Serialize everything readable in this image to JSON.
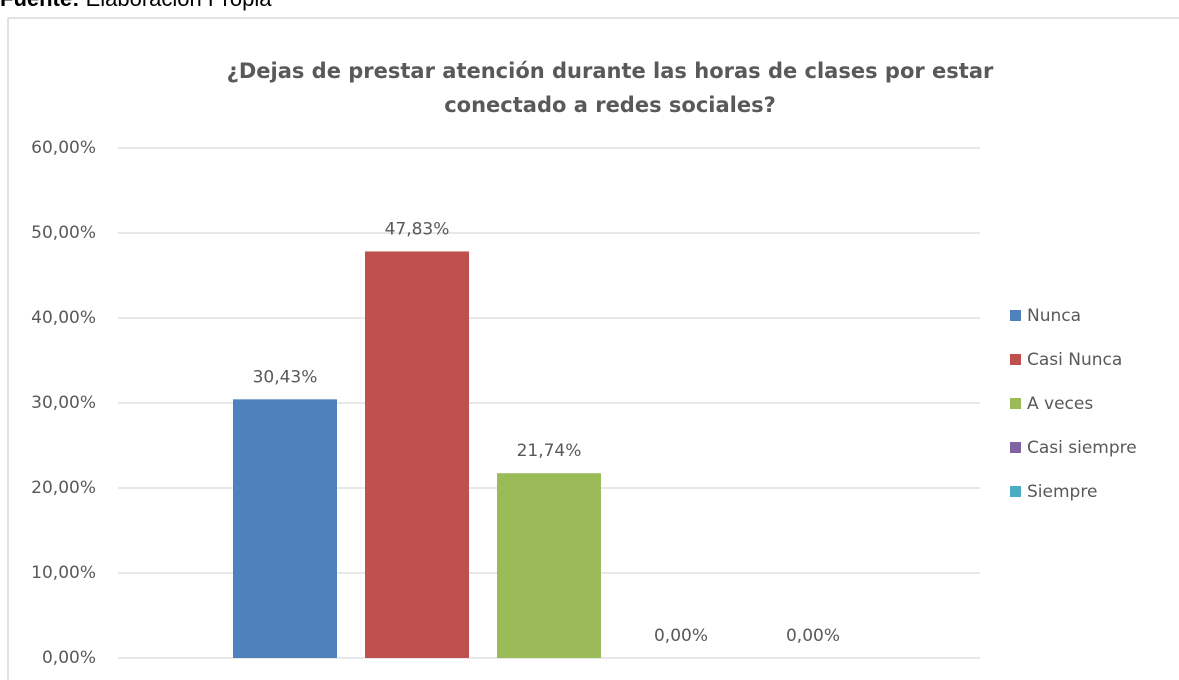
{
  "source_label": "Fuente:",
  "source": "Elaboración Propia",
  "chart_data": {
    "type": "bar",
    "title": "¿Dejas de prestar atención durante las horas de clases por estar conectado a redes sociales?",
    "categories": [
      null
    ],
    "series": [
      {
        "name": "Nunca",
        "color": "#4f81bd",
        "values": [
          30.43
        ],
        "value_labels": [
          "30,43%"
        ]
      },
      {
        "name": "Casi Nunca",
        "color": "#c0504d",
        "values": [
          47.83
        ],
        "value_labels": [
          "47,83%"
        ]
      },
      {
        "name": "A veces",
        "color": "#9bbb59",
        "values": [
          21.74
        ],
        "value_labels": [
          "21,74%"
        ]
      },
      {
        "name": "Casi siempre",
        "color": "#8064a2",
        "values": [
          0
        ],
        "value_labels": [
          "0,00%"
        ]
      },
      {
        "name": "Siempre",
        "color": "#4bacc6",
        "values": [
          0
        ],
        "value_labels": [
          "0,00%"
        ]
      }
    ],
    "ylim": [
      0,
      60
    ],
    "yticks": [
      {
        "value": 0,
        "label": "0,00%"
      },
      {
        "value": 10,
        "label": "10,00%"
      },
      {
        "value": 20,
        "label": "20,00%"
      },
      {
        "value": 30,
        "label": "30,00%"
      },
      {
        "value": 40,
        "label": "40,00%"
      },
      {
        "value": 50,
        "label": "50,00%"
      },
      {
        "value": 60,
        "label": "60,00%"
      }
    ],
    "grid": true,
    "legend": "right"
  }
}
